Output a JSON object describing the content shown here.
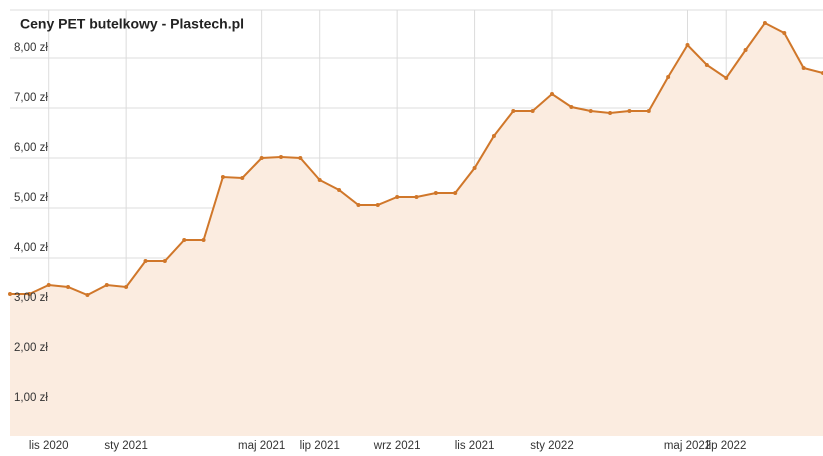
{
  "chart_data": {
    "type": "line",
    "title": "Ceny PET butelkowy - Plastech.pl",
    "categories": [
      null,
      null,
      "lis 2020",
      null,
      null,
      null,
      "sty 2021",
      null,
      null,
      null,
      null,
      null,
      null,
      "maj 2021",
      null,
      null,
      "lip 2021",
      null,
      null,
      null,
      "wrz 2021",
      null,
      null,
      null,
      "lis 2021",
      null,
      null,
      null,
      "sty 2022",
      null,
      null,
      null,
      null,
      null,
      null,
      "maj 2022",
      null,
      "lip 2022",
      null,
      null,
      null,
      null,
      null
    ],
    "series": [
      {
        "name": "PET butelkowy",
        "color": "#d0772a",
        "values": [
          3.28,
          3.28,
          3.46,
          3.42,
          3.26,
          3.46,
          3.42,
          3.94,
          3.94,
          4.36,
          4.36,
          5.62,
          5.6,
          6.0,
          6.02,
          6.0,
          5.56,
          5.36,
          5.06,
          5.06,
          5.22,
          5.22,
          5.3,
          5.3,
          5.8,
          6.44,
          6.94,
          6.94,
          7.28,
          7.02,
          6.94,
          6.9,
          6.94,
          6.94,
          7.62,
          8.26,
          7.86,
          7.6,
          8.16,
          8.7,
          8.5,
          7.8,
          7.7
        ]
      }
    ],
    "ylim": [
      0.44,
      8.96
    ],
    "yticks": [
      {
        "value": 1,
        "label": "1,00 zł"
      },
      {
        "value": 2,
        "label": "2,00 zł"
      },
      {
        "value": 3,
        "label": "3,00 zł"
      },
      {
        "value": 4,
        "label": "4,00 zł"
      },
      {
        "value": 5,
        "label": "5,00 zł"
      },
      {
        "value": 6,
        "label": "6,00 zł"
      },
      {
        "value": 7,
        "label": "7,00 zł"
      },
      {
        "value": 8,
        "label": "8,00 zł"
      }
    ],
    "grid": true,
    "fill": "#fbece0"
  }
}
